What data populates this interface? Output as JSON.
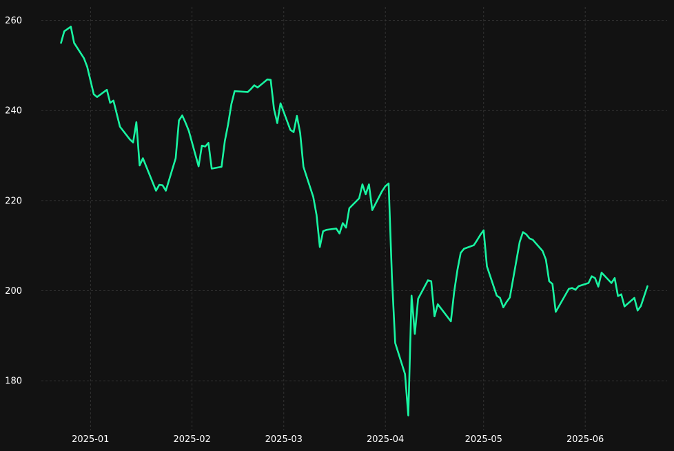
{
  "chart_data": {
    "type": "line",
    "title": "",
    "xlabel": "",
    "ylabel": "",
    "grid": true,
    "legend": "none",
    "colors": {
      "background": "#121212",
      "line": "#19f5a2",
      "grid": "#3a3a3a",
      "text": "#ffffff"
    },
    "xlim": [
      "2024-12-17",
      "2025-06-26"
    ],
    "ylim": [
      169,
      263
    ],
    "x_ticks": [
      {
        "date": "2025-01-01",
        "label": "2025-01"
      },
      {
        "date": "2025-02-01",
        "label": "2025-02"
      },
      {
        "date": "2025-03-01",
        "label": "2025-03"
      },
      {
        "date": "2025-04-01",
        "label": "2025-04"
      },
      {
        "date": "2025-05-01",
        "label": "2025-05"
      },
      {
        "date": "2025-06-01",
        "label": "2025-06"
      }
    ],
    "y_ticks": [
      {
        "value": 180,
        "label": "180"
      },
      {
        "value": 200,
        "label": "200"
      },
      {
        "value": 220,
        "label": "220"
      },
      {
        "value": 240,
        "label": "240"
      },
      {
        "value": 260,
        "label": "260"
      }
    ],
    "series": [
      {
        "x": [
          "2024-12-23",
          "2024-12-24",
          "2024-12-26",
          "2024-12-27",
          "2024-12-30",
          "2024-12-31",
          "2025-01-02",
          "2025-01-03",
          "2025-01-06",
          "2025-01-07",
          "2025-01-08",
          "2025-01-10",
          "2025-01-13",
          "2025-01-14",
          "2025-01-15",
          "2025-01-16",
          "2025-01-17",
          "2025-01-21",
          "2025-01-22",
          "2025-01-23",
          "2025-01-24",
          "2025-01-27",
          "2025-01-28",
          "2025-01-29",
          "2025-01-30",
          "2025-01-31",
          "2025-02-03",
          "2025-02-04",
          "2025-02-05",
          "2025-02-06",
          "2025-02-07",
          "2025-02-10",
          "2025-02-11",
          "2025-02-12",
          "2025-02-13",
          "2025-02-14",
          "2025-02-18",
          "2025-02-19",
          "2025-02-20",
          "2025-02-21",
          "2025-02-24",
          "2025-02-25",
          "2025-02-26",
          "2025-02-27",
          "2025-02-28",
          "2025-03-03",
          "2025-03-04",
          "2025-03-05",
          "2025-03-06",
          "2025-03-07",
          "2025-03-10",
          "2025-03-11",
          "2025-03-12",
          "2025-03-13",
          "2025-03-14",
          "2025-03-17",
          "2025-03-18",
          "2025-03-19",
          "2025-03-20",
          "2025-03-21",
          "2025-03-24",
          "2025-03-25",
          "2025-03-26",
          "2025-03-27",
          "2025-03-28",
          "2025-03-31",
          "2025-04-01",
          "2025-04-02",
          "2025-04-03",
          "2025-04-04",
          "2025-04-07",
          "2025-04-08",
          "2025-04-09",
          "2025-04-10",
          "2025-04-11",
          "2025-04-14",
          "2025-04-15",
          "2025-04-16",
          "2025-04-17",
          "2025-04-21",
          "2025-04-22",
          "2025-04-23",
          "2025-04-24",
          "2025-04-25",
          "2025-04-28",
          "2025-04-29",
          "2025-04-30",
          "2025-05-01",
          "2025-05-02",
          "2025-05-05",
          "2025-05-06",
          "2025-05-07",
          "2025-05-08",
          "2025-05-09",
          "2025-05-12",
          "2025-05-13",
          "2025-05-14",
          "2025-05-15",
          "2025-05-16",
          "2025-05-19",
          "2025-05-20",
          "2025-05-21",
          "2025-05-22",
          "2025-05-23",
          "2025-05-27",
          "2025-05-28",
          "2025-05-29",
          "2025-05-30",
          "2025-06-02",
          "2025-06-03",
          "2025-06-04",
          "2025-06-05",
          "2025-06-06",
          "2025-06-09",
          "2025-06-10",
          "2025-06-11",
          "2025-06-12",
          "2025-06-13",
          "2025-06-16",
          "2025-06-17",
          "2025-06-18",
          "2025-06-20"
        ],
        "values": [
          255.0,
          257.6,
          258.6,
          255.0,
          251.6,
          249.7,
          243.6,
          243.0,
          244.6,
          241.7,
          242.2,
          236.4,
          233.6,
          232.9,
          237.4,
          227.8,
          229.4,
          222.2,
          223.5,
          223.4,
          222.2,
          229.4,
          237.8,
          238.9,
          237.3,
          235.5,
          227.6,
          232.2,
          232.0,
          232.8,
          227.1,
          227.5,
          233.2,
          236.9,
          241.4,
          244.3,
          244.1,
          244.8,
          245.6,
          245.1,
          246.9,
          246.8,
          240.4,
          237.2,
          241.6,
          235.7,
          235.2,
          238.8,
          235.0,
          227.5,
          220.8,
          216.8,
          209.7,
          213.2,
          213.5,
          213.8,
          212.7,
          215.0,
          214.0,
          218.3,
          220.5,
          223.6,
          221.4,
          223.6,
          217.9,
          222.1,
          223.2,
          223.8,
          203.2,
          188.4,
          181.5,
          172.3,
          198.9,
          190.4,
          198.2,
          202.3,
          202.1,
          194.3,
          197.0,
          193.2,
          199.7,
          204.6,
          208.4,
          209.3,
          210.1,
          211.2,
          212.4,
          213.4,
          205.4,
          198.9,
          198.4,
          196.3,
          197.5,
          198.5,
          210.8,
          213.0,
          212.5,
          211.6,
          211.3,
          208.8,
          206.9,
          202.1,
          201.5,
          195.3,
          200.4,
          200.6,
          200.2,
          201.0,
          201.7,
          203.2,
          202.8,
          200.9,
          204.0,
          201.7,
          202.8,
          198.8,
          199.2,
          196.5,
          198.4,
          195.6,
          196.6,
          201.0
        ]
      }
    ]
  }
}
